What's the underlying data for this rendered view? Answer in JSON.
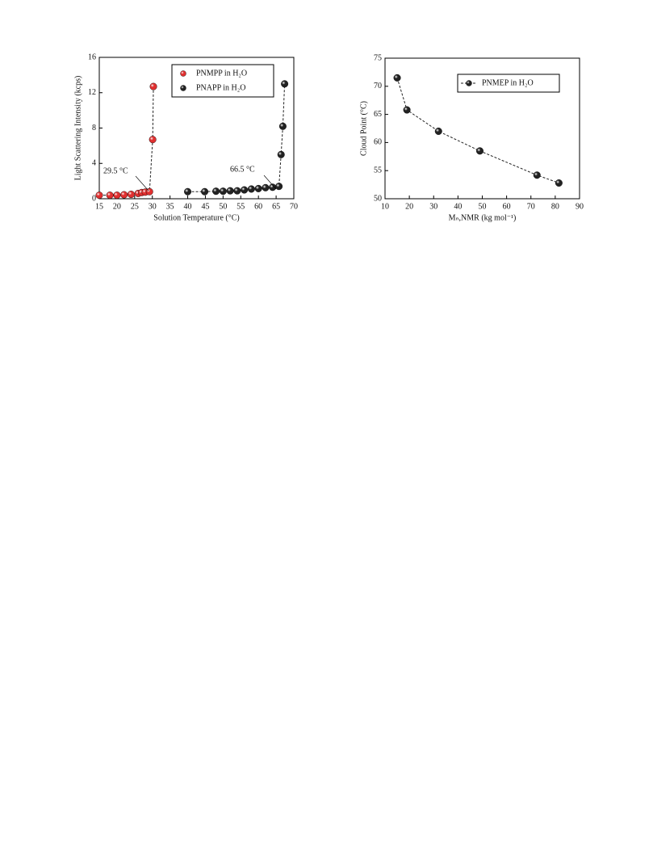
{
  "chart_data": [
    {
      "type": "scatter",
      "x_label": "Solution Temperature (°C)",
      "y_label": "Light Scattering Intensity (kcps)",
      "xlim": [
        15,
        70
      ],
      "xticks": [
        15,
        20,
        25,
        30,
        35,
        40,
        45,
        50,
        55,
        60,
        65,
        70
      ],
      "ylim": [
        0,
        16
      ],
      "yticks": [
        0,
        4,
        8,
        12,
        16
      ],
      "legend": "upper right",
      "connect": "dashed",
      "annotations": [
        "29.5 °C",
        "66.5 °C"
      ],
      "series": [
        {
          "name": "PNMPP in H₂O",
          "color": "#e03030",
          "x": [
            15,
            18,
            20,
            22,
            24,
            26,
            27,
            28,
            29.2,
            30.1,
            30.3
          ],
          "values": [
            0.4,
            0.4,
            0.4,
            0.45,
            0.5,
            0.6,
            0.7,
            0.75,
            0.8,
            6.7,
            12.7
          ]
        },
        {
          "name": "PNAPP in H₂O",
          "color": "#222222",
          "x": [
            40,
            44.8,
            48,
            50,
            52,
            54,
            56,
            58,
            60,
            62,
            64,
            65.8,
            66.4,
            66.9,
            67.4
          ],
          "values": [
            0.8,
            0.8,
            0.85,
            0.85,
            0.9,
            0.9,
            1.0,
            1.1,
            1.15,
            1.25,
            1.3,
            1.4,
            5.0,
            8.2,
            13.0
          ]
        }
      ]
    },
    {
      "type": "scatter",
      "x_label": "Mₙ,NMR (kg mol⁻¹)",
      "y_label": "Cloud Point (°C)",
      "xlim": [
        10,
        90
      ],
      "xticks": [
        10,
        20,
        30,
        40,
        50,
        60,
        70,
        80,
        90
      ],
      "ylim": [
        50,
        75
      ],
      "yticks": [
        50,
        55,
        60,
        65,
        70,
        75
      ],
      "legend": "upper right",
      "connect": "dashed",
      "series": [
        {
          "name": "PNMEP in H₂O",
          "color": "#222222",
          "x": [
            15,
            19,
            32,
            49,
            72.5,
            81.5
          ],
          "values": [
            71.5,
            65.8,
            62,
            58.5,
            54.2,
            52.8
          ]
        }
      ]
    }
  ]
}
